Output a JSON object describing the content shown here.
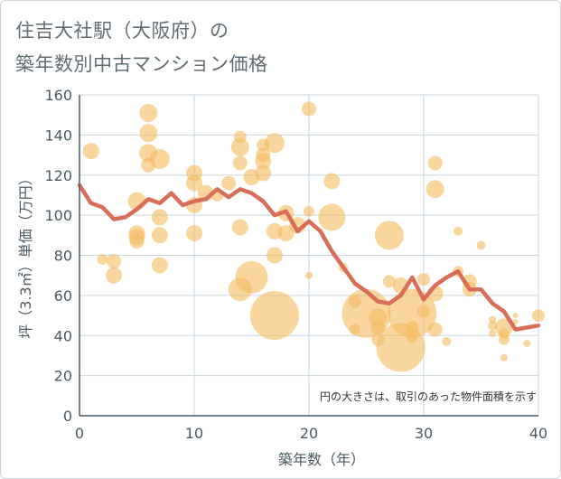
{
  "title_line1": "住吉大社駅（大阪府）の",
  "title_line2": "築年数別中古マンション価格",
  "colors": {
    "bubble": "#f3bd62",
    "line": "#d86d58",
    "grid": "#c9d7e0",
    "axis": "#4a5a63"
  },
  "chart_data": {
    "type": "scatter",
    "xlabel": "築年数（年）",
    "ylabel": "坪（3.3㎡）単価（万円）",
    "xlim": [
      0,
      40
    ],
    "ylim": [
      0,
      160
    ],
    "xticks": [
      "0",
      "10",
      "20",
      "30",
      "40"
    ],
    "yticks": [
      "0",
      "20",
      "40",
      "60",
      "80",
      "100",
      "120",
      "140",
      "160"
    ],
    "grid": true,
    "annotation": "円の大きさは、取引のあった物件面積を示す",
    "bubbles": [
      {
        "x": 1,
        "y": 132,
        "s": 9
      },
      {
        "x": 2,
        "y": 78,
        "s": 6
      },
      {
        "x": 3,
        "y": 77,
        "s": 8
      },
      {
        "x": 3,
        "y": 70,
        "s": 9
      },
      {
        "x": 5,
        "y": 107,
        "s": 10
      },
      {
        "x": 5,
        "y": 91,
        "s": 9
      },
      {
        "x": 5,
        "y": 89,
        "s": 9
      },
      {
        "x": 5,
        "y": 87,
        "s": 8
      },
      {
        "x": 6,
        "y": 151,
        "s": 10
      },
      {
        "x": 6,
        "y": 141,
        "s": 10
      },
      {
        "x": 6,
        "y": 131,
        "s": 10
      },
      {
        "x": 6,
        "y": 125,
        "s": 8
      },
      {
        "x": 7,
        "y": 128,
        "s": 11
      },
      {
        "x": 7,
        "y": 99,
        "s": 9
      },
      {
        "x": 7,
        "y": 90,
        "s": 9
      },
      {
        "x": 7,
        "y": 75,
        "s": 9
      },
      {
        "x": 10,
        "y": 121,
        "s": 9
      },
      {
        "x": 10,
        "y": 116,
        "s": 9
      },
      {
        "x": 10,
        "y": 105,
        "s": 9
      },
      {
        "x": 10,
        "y": 91,
        "s": 9
      },
      {
        "x": 11,
        "y": 111,
        "s": 9
      },
      {
        "x": 12,
        "y": 110,
        "s": 7
      },
      {
        "x": 13,
        "y": 116,
        "s": 8
      },
      {
        "x": 14,
        "y": 139,
        "s": 7
      },
      {
        "x": 14,
        "y": 134,
        "s": 10
      },
      {
        "x": 14,
        "y": 126,
        "s": 8
      },
      {
        "x": 14,
        "y": 94,
        "s": 9
      },
      {
        "x": 14,
        "y": 63,
        "s": 13
      },
      {
        "x": 15,
        "y": 119,
        "s": 9
      },
      {
        "x": 15,
        "y": 69,
        "s": 18
      },
      {
        "x": 16,
        "y": 135,
        "s": 7
      },
      {
        "x": 16,
        "y": 130,
        "s": 8
      },
      {
        "x": 16,
        "y": 127,
        "s": 9
      },
      {
        "x": 16,
        "y": 121,
        "s": 9
      },
      {
        "x": 17,
        "y": 136,
        "s": 11
      },
      {
        "x": 17,
        "y": 92,
        "s": 9
      },
      {
        "x": 17,
        "y": 80,
        "s": 9
      },
      {
        "x": 17,
        "y": 50,
        "s": 27
      },
      {
        "x": 18,
        "y": 101,
        "s": 9
      },
      {
        "x": 18,
        "y": 91,
        "s": 9
      },
      {
        "x": 19,
        "y": 95,
        "s": 9
      },
      {
        "x": 20,
        "y": 153,
        "s": 8
      },
      {
        "x": 20,
        "y": 102,
        "s": 6
      },
      {
        "x": 20,
        "y": 70,
        "s": 4
      },
      {
        "x": 22,
        "y": 117,
        "s": 9
      },
      {
        "x": 22,
        "y": 99,
        "s": 15
      },
      {
        "x": 23,
        "y": 74,
        "s": 5
      },
      {
        "x": 24,
        "y": 57,
        "s": 7
      },
      {
        "x": 24,
        "y": 43,
        "s": 6
      },
      {
        "x": 25,
        "y": 51,
        "s": 27
      },
      {
        "x": 26,
        "y": 49,
        "s": 10
      },
      {
        "x": 26,
        "y": 44,
        "s": 8
      },
      {
        "x": 26,
        "y": 38,
        "s": 7
      },
      {
        "x": 27,
        "y": 90,
        "s": 16
      },
      {
        "x": 27,
        "y": 67,
        "s": 7
      },
      {
        "x": 28,
        "y": 65,
        "s": 9
      },
      {
        "x": 28,
        "y": 34,
        "s": 27
      },
      {
        "x": 29,
        "y": 51,
        "s": 27
      },
      {
        "x": 29,
        "y": 44,
        "s": 7
      },
      {
        "x": 29,
        "y": 39,
        "s": 6
      },
      {
        "x": 30,
        "y": 68,
        "s": 7
      },
      {
        "x": 30,
        "y": 52,
        "s": 7
      },
      {
        "x": 31,
        "y": 126,
        "s": 8
      },
      {
        "x": 31,
        "y": 113,
        "s": 10
      },
      {
        "x": 31,
        "y": 61,
        "s": 9
      },
      {
        "x": 31,
        "y": 43,
        "s": 8
      },
      {
        "x": 32,
        "y": 37,
        "s": 5
      },
      {
        "x": 33,
        "y": 92,
        "s": 5
      },
      {
        "x": 33,
        "y": 72,
        "s": 6
      },
      {
        "x": 34,
        "y": 67,
        "s": 8
      },
      {
        "x": 34,
        "y": 63,
        "s": 8
      },
      {
        "x": 35,
        "y": 85,
        "s": 5
      },
      {
        "x": 36,
        "y": 48,
        "s": 4
      },
      {
        "x": 36,
        "y": 45,
        "s": 5
      },
      {
        "x": 36,
        "y": 41,
        "s": 4
      },
      {
        "x": 37,
        "y": 44,
        "s": 10
      },
      {
        "x": 37,
        "y": 41,
        "s": 6
      },
      {
        "x": 37,
        "y": 38,
        "s": 6
      },
      {
        "x": 37,
        "y": 29,
        "s": 4
      },
      {
        "x": 38,
        "y": 50,
        "s": 3
      },
      {
        "x": 38,
        "y": 47,
        "s": 3
      },
      {
        "x": 39,
        "y": 36,
        "s": 4
      },
      {
        "x": 40,
        "y": 50,
        "s": 7
      }
    ],
    "series": [
      {
        "x": [
          0,
          1,
          2,
          3,
          4,
          5,
          6,
          7,
          8,
          9,
          10,
          11,
          12,
          13,
          14,
          15,
          16,
          17,
          18,
          19,
          20,
          21,
          22,
          23,
          24,
          25,
          26,
          27,
          28,
          29,
          30,
          31,
          32,
          33,
          34,
          35,
          36,
          37,
          38,
          39,
          40
        ],
        "values": [
          115,
          106,
          104,
          98,
          99,
          103,
          108,
          106,
          111,
          105,
          107,
          108,
          113,
          109,
          113,
          111,
          107,
          100,
          102,
          92,
          97,
          92,
          82,
          74,
          66,
          62,
          57,
          56,
          60,
          69,
          58,
          65,
          69,
          72,
          63,
          63,
          56,
          52,
          43,
          44,
          45
        ]
      }
    ]
  }
}
